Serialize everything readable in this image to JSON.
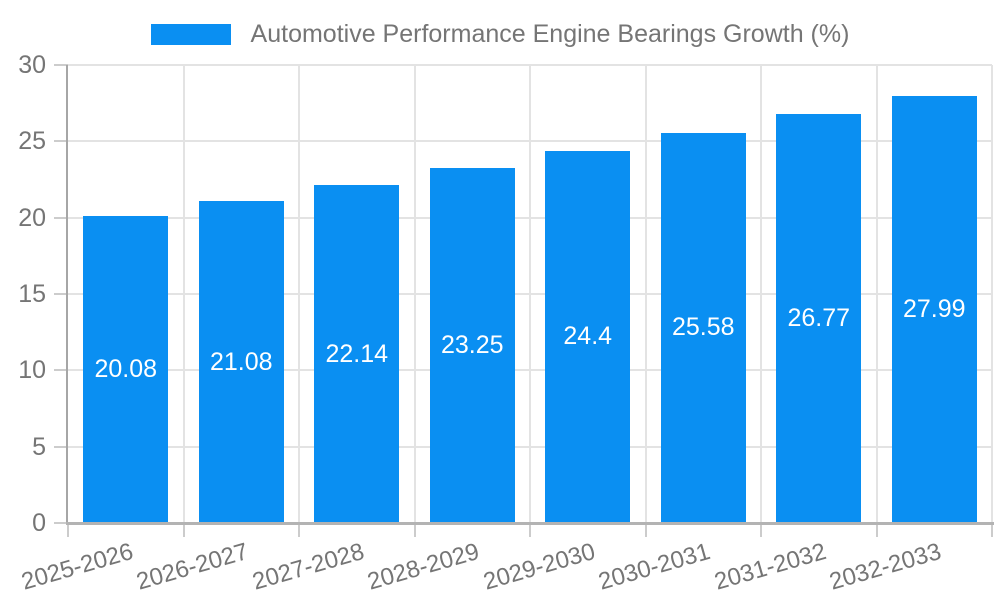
{
  "legend": {
    "label": "Automotive Performance Engine Bearings Growth (%)"
  },
  "colors": {
    "bar": "#0A8FF2",
    "axis_text": "#757575",
    "value_text": "#FFFFFF",
    "grid": "#E3E3E3",
    "y_axis_line": "#A6A6A6",
    "x_axis_line": "#B3B3B3",
    "tick": "#CCCCCC",
    "background": "#FFFFFF"
  },
  "chart_data": {
    "type": "bar",
    "title": "Automotive Performance Engine Bearings Growth (%)",
    "series_name": "Automotive Performance Engine Bearings Growth (%)",
    "categories": [
      "2025-2026",
      "2026-2027",
      "2027-2028",
      "2028-2029",
      "2029-2030",
      "2030-2031",
      "2031-2032",
      "2032-2033"
    ],
    "values": [
      20.08,
      21.08,
      22.14,
      23.25,
      24.4,
      25.58,
      26.77,
      27.99
    ],
    "value_labels": [
      "20.08",
      "21.08",
      "22.14",
      "23.25",
      "24.4",
      "25.58",
      "26.77",
      "27.99"
    ],
    "xlabel": "",
    "ylabel": "",
    "ylim": [
      0,
      30
    ],
    "yticks": [
      0,
      5,
      10,
      15,
      20,
      25,
      30
    ],
    "grid": true,
    "legend_position": "top-center",
    "bar_color": "#0A8FF2",
    "bar_label_color": "#FFFFFF"
  }
}
